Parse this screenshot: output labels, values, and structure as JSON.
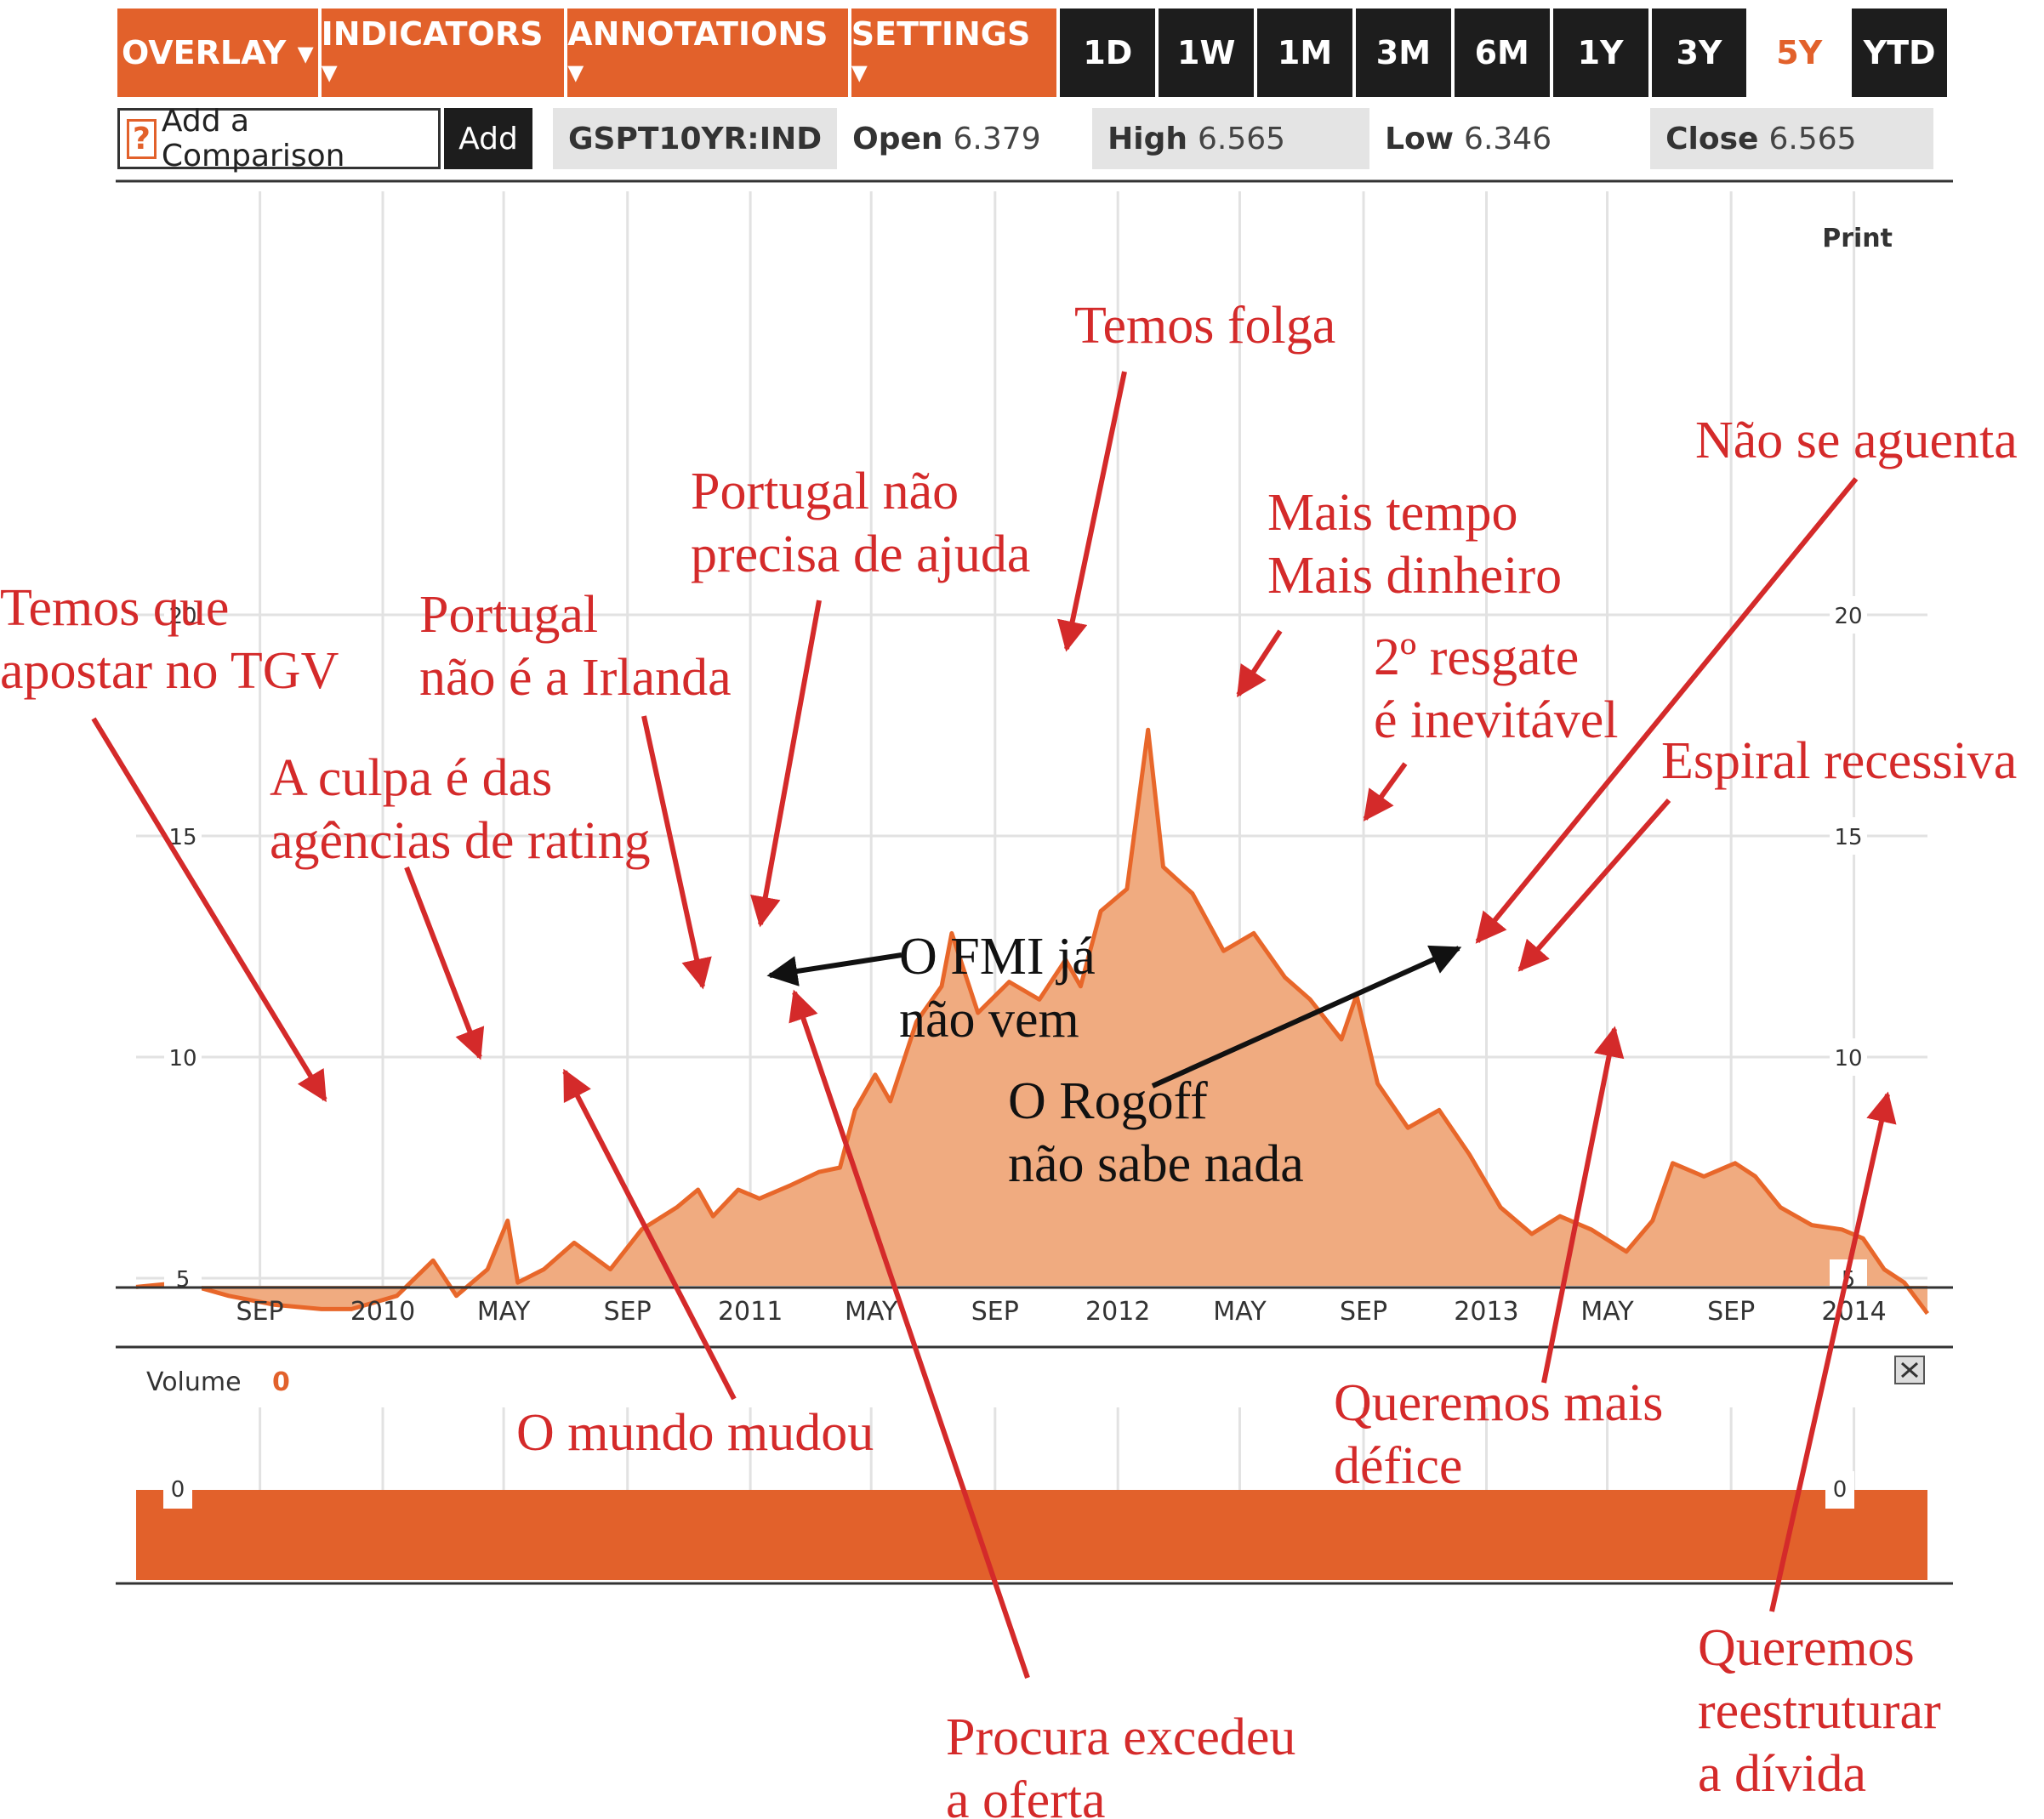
{
  "toolbar": {
    "menus": [
      "OVERLAY ▾",
      "INDICATORS ▾",
      "ANNOTATIONS ▾",
      "SETTINGS ▾"
    ],
    "ranges": [
      "1D",
      "1W",
      "1M",
      "3M",
      "6M",
      "1Y",
      "3Y",
      "5Y",
      "YTD"
    ],
    "active_range": "5Y"
  },
  "info": {
    "help_glyph": "?",
    "compare_placeholder": "Add a Comparison",
    "add_label": "Add",
    "ticker": "GSPT10YR:IND",
    "open_label": "Open",
    "open_value": "6.379",
    "high_label": "High",
    "high_value": "6.565",
    "low_label": "Low",
    "low_value": "6.346",
    "close_label": "Close",
    "close_value": "6.565"
  },
  "print_label": "Print",
  "volume": {
    "label": "Volume",
    "value": "0",
    "tick": "0"
  },
  "colors": {
    "accent": "#e2612b",
    "area_fill": "#f0ab80",
    "line": "#e8672a",
    "annotation_red": "#d42a2a",
    "annotation_black": "#111111",
    "dark_button": "#1d1d1d"
  },
  "chart_data": {
    "type": "area",
    "y_ticks": [
      5,
      10,
      15,
      20
    ],
    "ylim": [
      0,
      25
    ],
    "x_tick_labels": [
      "SEP",
      "2010",
      "MAY",
      "SEP",
      "2011",
      "MAY",
      "SEP",
      "2012",
      "MAY",
      "SEP",
      "2013",
      "MAY",
      "SEP",
      "2014"
    ],
    "x_tick_dates": [
      "2009-09",
      "2010-01",
      "2010-05",
      "2010-09",
      "2011-01",
      "2011-05",
      "2011-09",
      "2012-01",
      "2012-05",
      "2012-09",
      "2013-01",
      "2013-05",
      "2013-09",
      "2014-01"
    ],
    "grid": true,
    "series": [
      {
        "dates": [
          "2009-05-01",
          "2009-06-15",
          "2009-08-01",
          "2009-09-15",
          "2009-11-01",
          "2009-12-01",
          "2010-01-15",
          "2010-02-20",
          "2010-03-15",
          "2010-04-15",
          "2010-05-05",
          "2010-05-15",
          "2010-06-10",
          "2010-07-10",
          "2010-08-15",
          "2010-09-15",
          "2010-10-20",
          "2010-11-10",
          "2010-11-25",
          "2010-12-20",
          "2011-01-10",
          "2011-02-10",
          "2011-03-10",
          "2011-03-31",
          "2011-04-15",
          "2011-05-05",
          "2011-05-20",
          "2011-06-15",
          "2011-07-10",
          "2011-07-20",
          "2011-08-15",
          "2011-09-15",
          "2011-10-15",
          "2011-11-10",
          "2011-11-25",
          "2011-12-15",
          "2012-01-10",
          "2012-01-31",
          "2012-02-15",
          "2012-03-15",
          "2012-04-15",
          "2012-05-15",
          "2012-06-15",
          "2012-07-10",
          "2012-08-10",
          "2012-08-25",
          "2012-09-15",
          "2012-10-15",
          "2012-11-15",
          "2012-12-15",
          "2013-01-15",
          "2013-02-15",
          "2013-03-15",
          "2013-04-15",
          "2013-05-20",
          "2013-06-15",
          "2013-07-05",
          "2013-08-05",
          "2013-09-05",
          "2013-09-25",
          "2013-10-20",
          "2013-11-20",
          "2013-12-20",
          "2014-01-10",
          "2014-01-31",
          "2014-02-20",
          "2014-03-15"
        ],
        "values": [
          4.8,
          4.9,
          4.6,
          4.4,
          4.3,
          4.3,
          4.6,
          5.4,
          4.6,
          5.2,
          6.3,
          4.9,
          5.2,
          5.8,
          5.2,
          6.1,
          6.6,
          7.0,
          6.4,
          7.0,
          6.8,
          7.1,
          7.4,
          7.5,
          8.8,
          9.6,
          9.0,
          10.8,
          11.6,
          12.8,
          11.0,
          11.7,
          11.3,
          12.2,
          11.6,
          13.3,
          13.8,
          17.4,
          14.3,
          13.7,
          12.4,
          12.8,
          11.8,
          11.3,
          10.4,
          11.4,
          9.4,
          8.4,
          8.8,
          7.8,
          6.6,
          6.0,
          6.4,
          6.1,
          5.6,
          6.3,
          7.6,
          7.3,
          7.6,
          7.3,
          6.6,
          6.2,
          6.1,
          5.9,
          5.2,
          4.9,
          4.2
        ]
      }
    ],
    "annotations": [
      {
        "text": [
          "Temos que",
          "apostar no TGV"
        ],
        "color": "red"
      },
      {
        "text": [
          "A culpa é das",
          "agências de rating"
        ],
        "color": "red"
      },
      {
        "text": [
          "Portugal",
          "não é a Irlanda"
        ],
        "color": "red"
      },
      {
        "text": [
          "Portugal não",
          "precisa de ajuda"
        ],
        "color": "red"
      },
      {
        "text": [
          "Temos folga"
        ],
        "color": "red"
      },
      {
        "text": [
          "Mais tempo",
          "Mais dinheiro"
        ],
        "color": "red"
      },
      {
        "text": [
          "2º resgate",
          "é inevitável"
        ],
        "color": "red"
      },
      {
        "text": [
          "Não se aguenta"
        ],
        "color": "red"
      },
      {
        "text": [
          "Espiral recessiva"
        ],
        "color": "red"
      },
      {
        "text": [
          "O FMI já",
          "não vem"
        ],
        "color": "black"
      },
      {
        "text": [
          "O Rogoff",
          "não sabe nada"
        ],
        "color": "black"
      },
      {
        "text": [
          "O mundo mudou"
        ],
        "color": "red"
      },
      {
        "text": [
          "Queremos mais",
          "défice"
        ],
        "color": "red"
      },
      {
        "text": [
          "Procura excedeu",
          "a oferta"
        ],
        "color": "red"
      },
      {
        "text": [
          "Queremos",
          "reestruturar",
          "a dívida"
        ],
        "color": "red"
      }
    ]
  }
}
